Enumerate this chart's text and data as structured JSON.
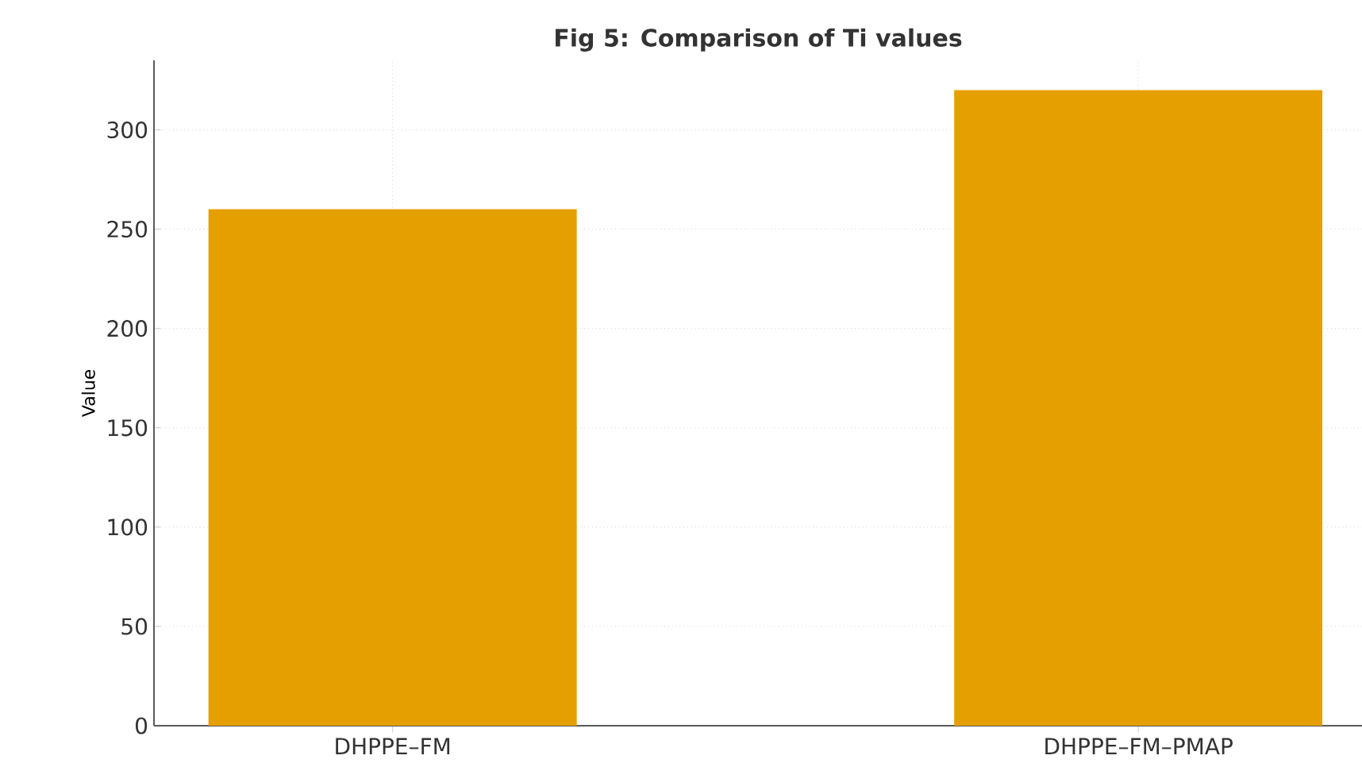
{
  "chart_data": {
    "type": "bar",
    "title": "Fig 5: Comparison of Ti values",
    "ylabel": "Value",
    "categories": [
      "DHPPE–FM",
      "DHPPE–FM–PMAP"
    ],
    "values": [
      260,
      320
    ],
    "color": "#e69f00",
    "ylim": [
      0,
      335
    ],
    "yticks": [
      0,
      50,
      100,
      150,
      200,
      250,
      300
    ],
    "grid": true
  }
}
